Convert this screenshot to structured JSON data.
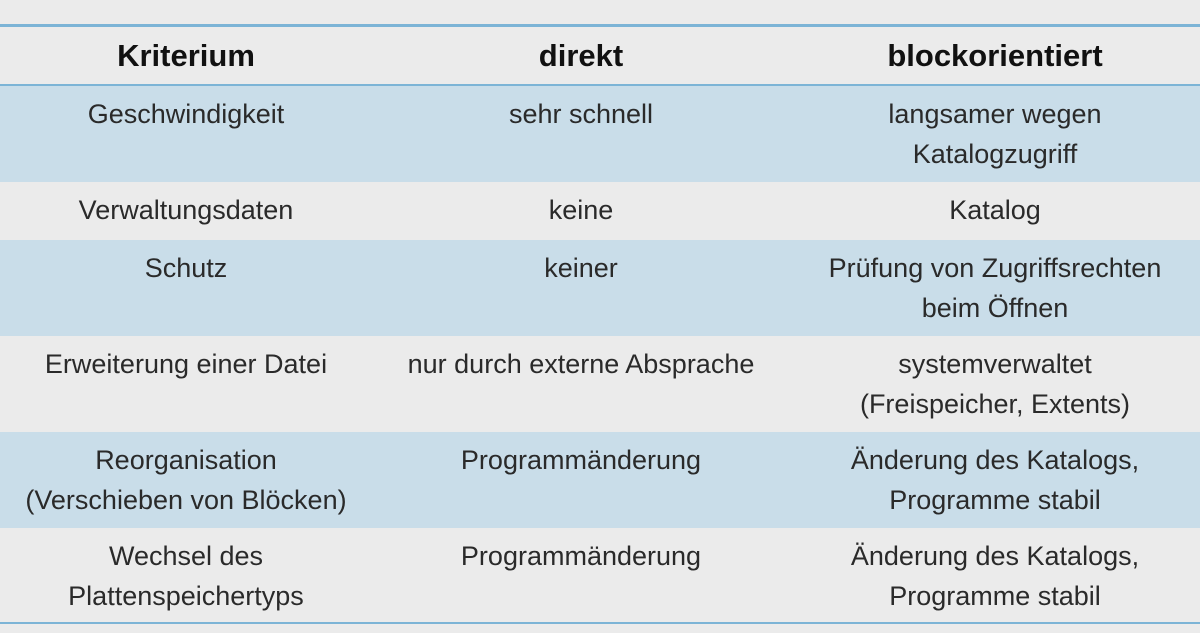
{
  "table": {
    "headers": [
      "Kriterium",
      "direkt",
      "blockorientiert"
    ],
    "rows": [
      {
        "kriterium": [
          "Geschwindigkeit"
        ],
        "direkt": [
          "sehr schnell"
        ],
        "blockorientiert": [
          "langsamer wegen",
          "Katalogzugriff"
        ]
      },
      {
        "kriterium": [
          "Verwaltungsdaten"
        ],
        "direkt": [
          "keine"
        ],
        "blockorientiert": [
          "Katalog"
        ]
      },
      {
        "kriterium": [
          "Schutz"
        ],
        "direkt": [
          "keiner"
        ],
        "blockorientiert": [
          "Prüfung von Zugriffsrechten",
          "beim Öffnen"
        ]
      },
      {
        "kriterium": [
          "Erweiterung einer Datei"
        ],
        "direkt": [
          "nur durch externe Absprache"
        ],
        "blockorientiert": [
          "systemverwaltet",
          "(Freispeicher, Extents)"
        ]
      },
      {
        "kriterium": [
          "Reorganisation",
          "(Verschieben von Blöcken)"
        ],
        "direkt": [
          "Programmänderung"
        ],
        "blockorientiert": [
          "Änderung des Katalogs,",
          "Programme stabil"
        ]
      },
      {
        "kriterium": [
          "Wechsel des",
          "Plattenspeichertyps"
        ],
        "direkt": [
          "Programmänderung"
        ],
        "blockorientiert": [
          "Änderung des Katalogs,",
          "Programme stabil"
        ]
      }
    ]
  },
  "colors": {
    "background": "#ebebeb",
    "rule": "#7cb4d6",
    "shaded_row": "#c9dde9",
    "text": "#2a2a2a"
  }
}
